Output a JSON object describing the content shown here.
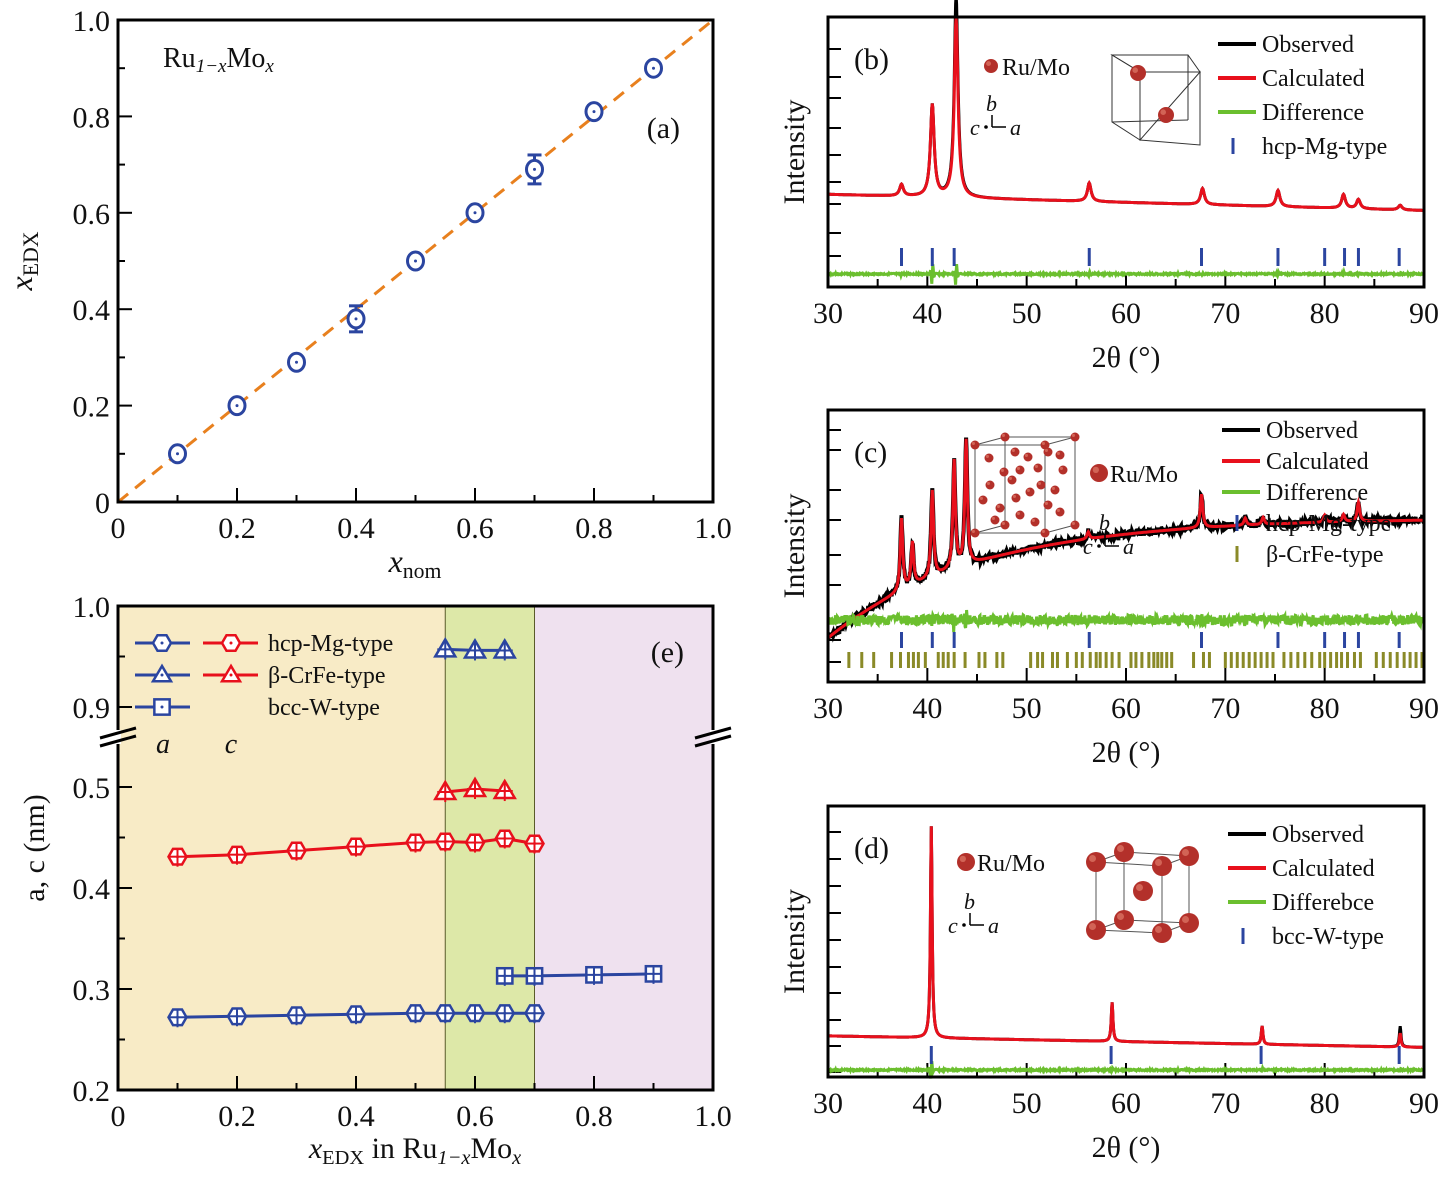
{
  "chart_data": [
    {
      "id": "a",
      "type": "scatter",
      "panel_label": "(a)",
      "annotation": {
        "base": "Ru",
        "sub1": "1−x",
        "base2": "Mo",
        "sub2": "x"
      },
      "xlabel": {
        "main": "x",
        "sub": "nom"
      },
      "ylabel": {
        "main": "x",
        "sub": "EDX"
      },
      "xlim": [
        0,
        1.0
      ],
      "ylim": [
        0,
        1.0
      ],
      "xticks": [
        "0",
        "0.2",
        "0.4",
        "0.6",
        "0.8",
        "1.0"
      ],
      "yticks": [
        "0",
        "0.2",
        "0.4",
        "0.6",
        "0.8",
        "1.0"
      ],
      "reference_line": {
        "style": "dashed",
        "color": "#e8801e",
        "from": [
          0,
          0
        ],
        "to": [
          1,
          1
        ]
      },
      "series": [
        {
          "name": "xEDX",
          "color": "#2b45a0",
          "marker": "circle",
          "x": [
            0.1,
            0.2,
            0.3,
            0.4,
            0.5,
            0.6,
            0.7,
            0.8,
            0.9
          ],
          "y": [
            0.1,
            0.2,
            0.29,
            0.38,
            0.5,
            0.6,
            0.69,
            0.81,
            0.9
          ],
          "err": [
            0.01,
            0.01,
            0.01,
            0.027,
            0.01,
            0.01,
            0.03,
            0.012,
            0.01
          ]
        }
      ]
    },
    {
      "id": "b",
      "type": "line",
      "panel_label": "(b)",
      "xlabel": "2θ (°)",
      "ylabel": "Intensity",
      "xlim": [
        30,
        90
      ],
      "xticks": [
        "30",
        "40",
        "50",
        "60",
        "70",
        "80",
        "90"
      ],
      "inset": {
        "atom_label": "Ru/Mo",
        "axes": {
          "b": "b",
          "c": "c",
          "a": "a"
        },
        "structure": "hcp"
      },
      "legend": [
        {
          "label": "Observed",
          "color": "#000000",
          "kind": "line"
        },
        {
          "label": "Calculated",
          "color": "#e8101c",
          "kind": "line"
        },
        {
          "label": "Difference",
          "color": "#6bbf2e",
          "kind": "line"
        },
        {
          "label": "hcp-Mg-type",
          "color": "#2b45a0",
          "kind": "tick"
        }
      ],
      "background": {
        "start": 0.12,
        "end": 0.05
      },
      "peaks": [
        {
          "x": 37.4,
          "h": 0.05
        },
        {
          "x": 40.5,
          "h": 0.4
        },
        {
          "x": 42.9,
          "h": 0.78
        },
        {
          "x": 56.3,
          "h": 0.08
        },
        {
          "x": 67.7,
          "h": 0.07
        },
        {
          "x": 75.3,
          "h": 0.07
        },
        {
          "x": 81.9,
          "h": 0.06
        },
        {
          "x": 83.4,
          "h": 0.04
        },
        {
          "x": 87.6,
          "h": 0.02
        }
      ],
      "obs_peak_excess": {
        "42.9": 0.1
      },
      "reflections": [
        {
          "name": "hcp-Mg-type",
          "color": "#2b45a0",
          "positions": [
            37.4,
            40.5,
            42.7,
            56.3,
            67.6,
            75.3,
            80.0,
            82.0,
            83.4,
            87.5
          ]
        }
      ]
    },
    {
      "id": "c",
      "type": "line",
      "panel_label": "(c)",
      "xlabel": "2θ (°)",
      "ylabel": "Intensity",
      "xlim": [
        30,
        90
      ],
      "xticks": [
        "30",
        "40",
        "50",
        "60",
        "70",
        "80",
        "90"
      ],
      "inset": {
        "atom_label": "Ru/Mo",
        "axes": {
          "b": "b",
          "c": "c",
          "a": "a"
        },
        "structure": "beta-CrFe"
      },
      "legend": [
        {
          "label": "Observed",
          "color": "#000000",
          "kind": "line"
        },
        {
          "label": "Calculated",
          "color": "#e8101c",
          "kind": "line"
        },
        {
          "label": "Difference",
          "color": "#6bbf2e",
          "kind": "line"
        },
        {
          "label": "hcp-Mg-type",
          "color": "#2b45a0",
          "kind": "tick"
        },
        {
          "label": "β-CrFe-type",
          "color": "#8a8a28",
          "kind": "tick"
        }
      ],
      "background": {
        "start": 0.55,
        "end": 0.05
      },
      "peaks": [
        {
          "x": 37.4,
          "h": 0.3
        },
        {
          "x": 38.5,
          "h": 0.18
        },
        {
          "x": 40.5,
          "h": 0.36
        },
        {
          "x": 42.7,
          "h": 0.45
        },
        {
          "x": 43.9,
          "h": 0.52
        },
        {
          "x": 56.2,
          "h": 0.03
        },
        {
          "x": 67.6,
          "h": 0.14
        },
        {
          "x": 72.0,
          "h": 0.03
        },
        {
          "x": 73.8,
          "h": 0.03
        },
        {
          "x": 80.0,
          "h": 0.03
        },
        {
          "x": 81.9,
          "h": 0.03
        },
        {
          "x": 83.4,
          "h": 0.08
        }
      ],
      "reflections": [
        {
          "name": "hcp-Mg-type",
          "color": "#2b45a0",
          "positions": [
            37.4,
            40.5,
            42.7,
            56.3,
            67.6,
            75.3,
            80.0,
            82.0,
            83.4,
            87.5
          ]
        },
        {
          "name": "β-CrFe-type",
          "color": "#8a8a28",
          "positions": [
            32.1,
            33.4,
            34.6,
            36.4,
            37.3,
            38.1,
            38.6,
            39.1,
            39.8,
            41.1,
            41.6,
            42.1,
            42.7,
            43.8,
            45.2,
            45.8,
            47.0,
            47.6,
            50.4,
            51.1,
            51.6,
            52.6,
            53.1,
            54.1,
            55.0,
            55.6,
            56.4,
            57.0,
            57.4,
            58.0,
            58.6,
            59.3,
            60.5,
            61.0,
            61.6,
            62.3,
            62.8,
            63.2,
            63.6,
            64.1,
            64.6,
            66.8,
            67.8,
            68.4,
            70.0,
            70.6,
            71.2,
            71.8,
            72.4,
            73.0,
            73.6,
            74.2,
            74.8,
            75.9,
            76.6,
            77.3,
            78.0,
            78.7,
            79.5,
            80.0,
            80.6,
            81.2,
            81.7,
            82.3,
            83.0,
            83.6,
            85.2,
            85.9,
            86.6,
            87.3,
            88.0,
            88.6,
            89.2,
            89.8
          ]
        }
      ]
    },
    {
      "id": "d",
      "type": "line",
      "panel_label": "(d)",
      "xlabel": "2θ (°)",
      "ylabel": "Intensity",
      "xlim": [
        30,
        90
      ],
      "xticks": [
        "30",
        "40",
        "50",
        "60",
        "70",
        "80",
        "90"
      ],
      "inset": {
        "atom_label": "Ru/Mo",
        "axes": {
          "b": "b",
          "c": "c",
          "a": "a"
        },
        "structure": "bcc"
      },
      "legend": [
        {
          "label": "Observed",
          "color": "#000000",
          "kind": "line"
        },
        {
          "label": "Calculated",
          "color": "#e8101c",
          "kind": "line"
        },
        {
          "label": "Differebce",
          "color": "#6bbf2e",
          "kind": "line"
        },
        {
          "label": "bcc-W-type",
          "color": "#2b45a0",
          "kind": "tick"
        }
      ],
      "background": {
        "start": 0.07,
        "end": 0.02
      },
      "peaks": [
        {
          "x": 40.4,
          "h": 0.92
        },
        {
          "x": 58.6,
          "h": 0.17
        },
        {
          "x": 73.7,
          "h": 0.08
        },
        {
          "x": 87.6,
          "h": 0.06
        }
      ],
      "obs_peak_excess": {
        "87.6": 0.03
      },
      "reflections": [
        {
          "name": "bcc-W-type",
          "color": "#2b45a0",
          "positions": [
            40.4,
            58.5,
            73.6,
            87.5
          ]
        }
      ]
    },
    {
      "id": "e",
      "type": "line",
      "panel_label": "(e)",
      "xlabel": {
        "main": "x",
        "sub": "EDX",
        "rest": " in Ru",
        "sub1": "1−x",
        "rest2": "Mo",
        "sub2": "x"
      },
      "ylabel": "a, c (nm)",
      "xlim": [
        0,
        1.0
      ],
      "ylim_lower": [
        0.2,
        0.55
      ],
      "ylim_upper": [
        0.875,
        1.0
      ],
      "xticks": [
        "0",
        "0.2",
        "0.4",
        "0.6",
        "0.8",
        "1.0"
      ],
      "yticks_lower": [
        "0.2",
        "0.3",
        "0.4",
        "0.5"
      ],
      "yticks_upper": [
        "0.9",
        "1.0"
      ],
      "regions": [
        {
          "from": 0,
          "to": 0.55,
          "color": "#f8ebc6"
        },
        {
          "from": 0.55,
          "to": 0.7,
          "color": "#dde8a8"
        },
        {
          "from": 0.7,
          "to": 1.0,
          "color": "#efe1ef"
        }
      ],
      "legend": [
        {
          "label": "hcp-Mg-type",
          "marker": "hexagon",
          "a_color": "#2b45a0",
          "c_color": "#e8101c",
          "has_c": true
        },
        {
          "label": "β-CrFe-type",
          "marker": "triangle",
          "a_color": "#2b45a0",
          "c_color": "#e8101c",
          "has_c": true
        },
        {
          "label": "bcc-W-type",
          "marker": "square",
          "a_color": "#2b45a0",
          "c_color": "#e8101c",
          "has_c": false
        }
      ],
      "legend_a": "a",
      "legend_c": "c",
      "series": [
        {
          "name": "hcp-Mg-type a",
          "color": "#2b45a0",
          "marker": "hexagon",
          "x": [
            0.1,
            0.2,
            0.3,
            0.4,
            0.5,
            0.55,
            0.6,
            0.65,
            0.7
          ],
          "y": [
            0.272,
            0.273,
            0.274,
            0.275,
            0.276,
            0.276,
            0.276,
            0.276,
            0.276
          ]
        },
        {
          "name": "hcp-Mg-type c",
          "color": "#e8101c",
          "marker": "hexagon",
          "x": [
            0.1,
            0.2,
            0.3,
            0.4,
            0.5,
            0.55,
            0.6,
            0.65,
            0.7
          ],
          "y": [
            0.431,
            0.433,
            0.437,
            0.441,
            0.445,
            0.446,
            0.445,
            0.449,
            0.444
          ]
        },
        {
          "name": "β-CrFe-type a",
          "color": "#2b45a0",
          "marker": "triangle",
          "x": [
            0.55,
            0.6,
            0.65
          ],
          "y": [
            0.957,
            0.956,
            0.956
          ]
        },
        {
          "name": "β-CrFe-type c",
          "color": "#e8101c",
          "marker": "triangle",
          "x": [
            0.55,
            0.6,
            0.65
          ],
          "y": [
            0.495,
            0.498,
            0.496
          ]
        },
        {
          "name": "bcc-W-type a",
          "color": "#2b45a0",
          "marker": "square",
          "x": [
            0.65,
            0.7,
            0.8,
            0.9
          ],
          "y": [
            0.313,
            0.313,
            0.314,
            0.315
          ]
        }
      ]
    }
  ]
}
